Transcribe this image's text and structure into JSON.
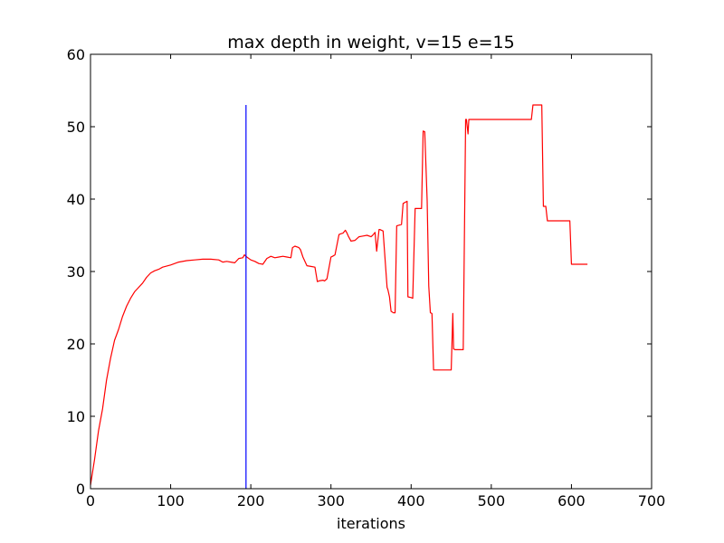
{
  "chart_data": {
    "type": "line",
    "title": "max depth in weight, v=15 e=15",
    "xlabel": "iterations",
    "ylabel": "",
    "xlim": [
      0,
      700
    ],
    "ylim": [
      0,
      60
    ],
    "xticks": [
      0,
      100,
      200,
      300,
      400,
      500,
      600,
      700
    ],
    "yticks": [
      0,
      10,
      20,
      30,
      40,
      50,
      60
    ],
    "xtick_labels": [
      "0",
      "100",
      "200",
      "300",
      "400",
      "500",
      "600",
      "700"
    ],
    "ytick_labels": [
      "0",
      "10",
      "20",
      "30",
      "40",
      "50",
      "60"
    ],
    "grid": false,
    "series": [
      {
        "color": "#ff0000",
        "x": [
          0,
          5,
          10,
          15,
          20,
          25,
          30,
          35,
          40,
          45,
          50,
          55,
          60,
          65,
          70,
          75,
          80,
          85,
          90,
          100,
          110,
          120,
          130,
          140,
          150,
          160,
          165,
          170,
          175,
          180,
          185,
          190,
          192,
          195,
          200,
          205,
          210,
          215,
          220,
          225,
          230,
          235,
          240,
          245,
          250,
          252,
          255,
          260,
          262,
          265,
          270,
          275,
          280,
          283,
          285,
          290,
          292,
          295,
          300,
          302,
          305,
          310,
          312,
          315,
          318,
          320,
          322,
          325,
          330,
          335,
          340,
          345,
          350,
          352,
          355,
          357,
          360,
          361,
          363,
          365,
          370,
          371,
          373,
          375,
          378,
          380,
          382,
          385,
          388,
          390,
          395,
          396,
          400,
          402,
          405,
          406,
          410,
          413,
          415,
          417,
          420,
          422,
          424,
          426,
          428,
          430,
          432,
          435,
          440,
          445,
          450,
          452,
          453,
          455,
          457,
          460,
          465,
          468,
          469,
          471,
          472,
          474,
          480,
          490,
          500,
          520,
          540,
          550,
          552,
          560,
          563,
          565,
          568,
          570,
          575,
          585,
          598,
          600,
          610,
          620
        ],
        "values": [
          0.5,
          4,
          8,
          11,
          15,
          18,
          20.5,
          22,
          23.8,
          25.2,
          26.3,
          27.2,
          27.8,
          28.4,
          29.2,
          29.8,
          30.1,
          30.3,
          30.6,
          30.9,
          31.3,
          31.5,
          31.6,
          31.7,
          31.7,
          31.6,
          31.3,
          31.4,
          31.3,
          31.2,
          31.8,
          31.9,
          32.3,
          32.0,
          31.6,
          31.4,
          31.1,
          31.0,
          31.8,
          32.1,
          31.9,
          32.0,
          32.1,
          32.0,
          31.9,
          33.3,
          33.5,
          33.3,
          33.0,
          32.0,
          30.8,
          30.7,
          30.6,
          28.6,
          28.7,
          28.8,
          28.7,
          29.0,
          32.0,
          32.1,
          32.3,
          35.1,
          35.2,
          35.3,
          35.7,
          35.3,
          34.8,
          34.2,
          34.3,
          34.8,
          34.9,
          35.0,
          34.8,
          35.0,
          35.4,
          32.8,
          35.8,
          35.8,
          35.7,
          35.6,
          27.8,
          27.5,
          26.5,
          24.5,
          24.3,
          24.3,
          36.3,
          36.4,
          36.5,
          39.4,
          39.7,
          26.5,
          26.4,
          26.3,
          38.7,
          38.7,
          38.7,
          38.7,
          49.4,
          49.3,
          39.8,
          28.0,
          24.3,
          24.2,
          16.4,
          16.4,
          16.4,
          16.4,
          16.4,
          16.4,
          16.4,
          24.2,
          19.3,
          19.2,
          19.2,
          19.2,
          19.2,
          51.0,
          51.0,
          49.0,
          51.0,
          51.0,
          51.0,
          51.0,
          51.0,
          51.0,
          51.0,
          51.0,
          53.0,
          53.0,
          53.0,
          39.0,
          39.0,
          37.0,
          37.0,
          37.0,
          37.0,
          31.0,
          31.0,
          31.0
        ]
      }
    ],
    "vlines": [
      {
        "x": 194,
        "ymin": 0,
        "ymax": 53,
        "color": "#0000ff"
      }
    ]
  }
}
